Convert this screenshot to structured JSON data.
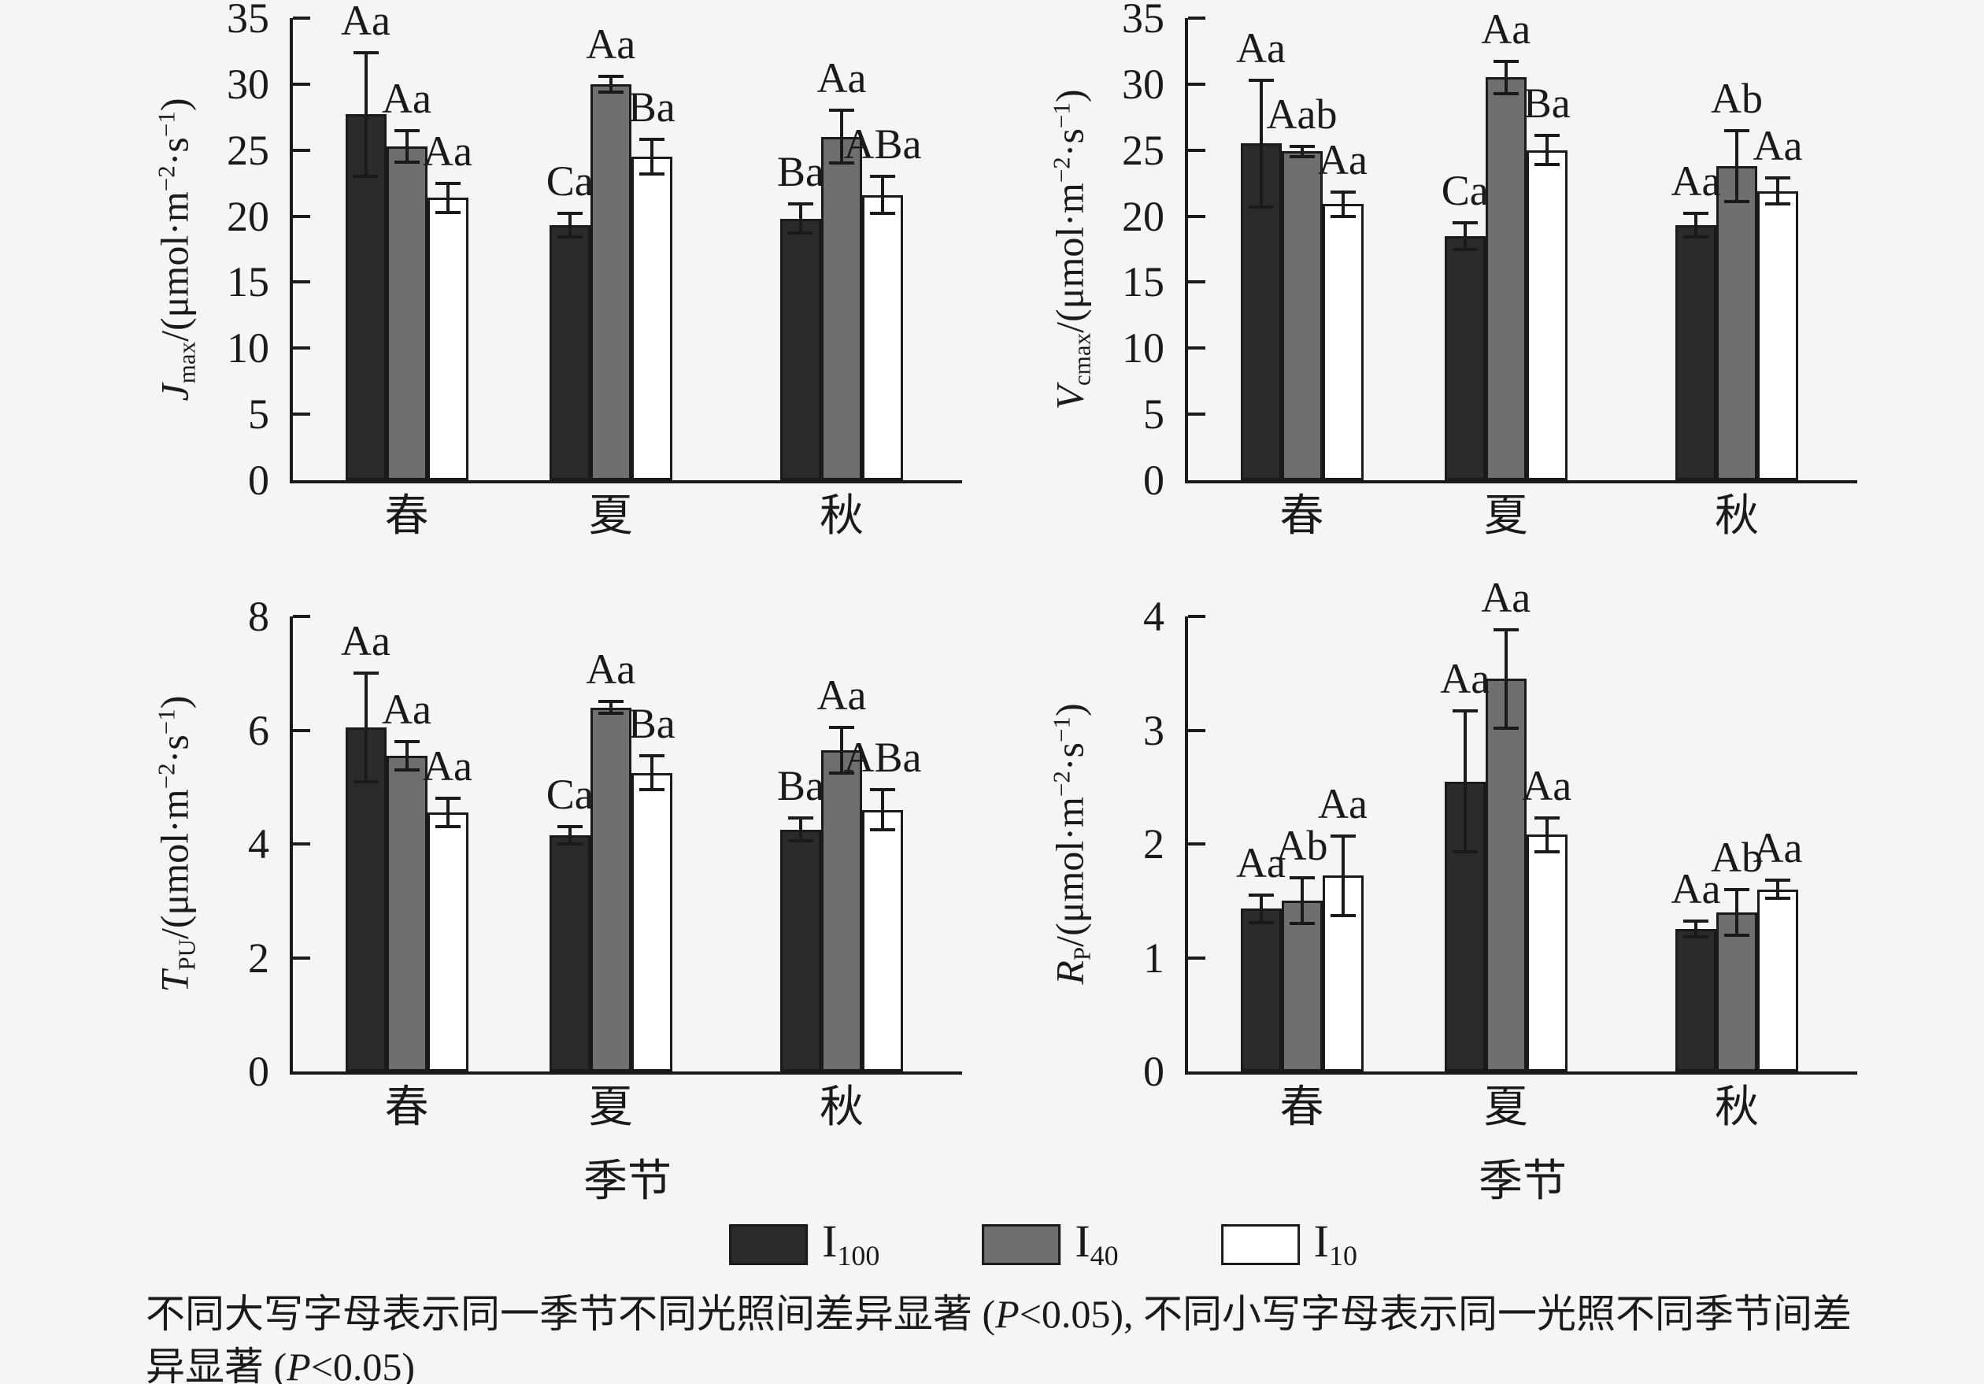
{
  "background_color": "#f5f5f4",
  "axis_color": "#1a1a1a",
  "categories": [
    "春",
    "夏",
    "秋"
  ],
  "xlabel": "季节",
  "legend": {
    "items": [
      {
        "main": "I",
        "sub": "100",
        "fill": "#2b2b2b"
      },
      {
        "main": "I",
        "sub": "40",
        "fill": "#6f6f6f"
      },
      {
        "main": "I",
        "sub": "10",
        "fill": "#ffffff"
      }
    ]
  },
  "caption_segments": [
    {
      "t": "不同大写字母表示同一季节不同光照间差异显著 (",
      "s": ""
    },
    {
      "t": "P",
      "s": "i"
    },
    {
      "t": "<0.05), 不同小写字母表示同一光照不同季节间差异显著 (",
      "s": ""
    },
    {
      "t": "P",
      "s": "i"
    },
    {
      "t": "<0.05)",
      "s": ""
    }
  ],
  "chart_data": [
    {
      "id": "jmax",
      "type": "bar",
      "ylabel_segments": [
        {
          "t": "J",
          "s": "i"
        },
        {
          "t": "max",
          "s": "sub"
        },
        {
          "t": "/(μmol·m",
          "s": ""
        },
        {
          "t": "−2",
          "s": "sup"
        },
        {
          "t": "·s",
          "s": ""
        },
        {
          "t": "−1",
          "s": "sup"
        },
        {
          "t": ")",
          "s": ""
        }
      ],
      "ylim": [
        0,
        35
      ],
      "ytick_step": 5,
      "grid": false,
      "show_xlabel": false,
      "categories": [
        "春",
        "夏",
        "秋"
      ],
      "series": [
        {
          "name": "I100",
          "values": [
            27.7,
            19.3,
            19.8
          ],
          "errors": [
            4.7,
            0.9,
            1.1
          ],
          "letters": [
            "Aa",
            "Ca",
            "Ba"
          ]
        },
        {
          "name": "I40",
          "values": [
            25.3,
            30.0,
            26.0
          ],
          "errors": [
            1.2,
            0.6,
            2.0
          ],
          "letters": [
            "Aa",
            "Aa",
            "Aa"
          ]
        },
        {
          "name": "I10",
          "values": [
            21.4,
            24.5,
            21.6
          ],
          "errors": [
            1.1,
            1.3,
            1.4
          ],
          "letters": [
            "Aa",
            "Ba",
            "ABa"
          ]
        }
      ]
    },
    {
      "id": "vcmax",
      "type": "bar",
      "ylabel_segments": [
        {
          "t": "V",
          "s": "i"
        },
        {
          "t": "cmax",
          "s": "sub"
        },
        {
          "t": "/(μmol·m",
          "s": ""
        },
        {
          "t": "−2",
          "s": "sup"
        },
        {
          "t": "·s",
          "s": ""
        },
        {
          "t": "−1",
          "s": "sup"
        },
        {
          "t": ")",
          "s": ""
        }
      ],
      "ylim": [
        0,
        35
      ],
      "ytick_step": 5,
      "grid": false,
      "show_xlabel": false,
      "categories": [
        "春",
        "夏",
        "秋"
      ],
      "series": [
        {
          "name": "I100",
          "values": [
            25.5,
            18.5,
            19.3
          ],
          "errors": [
            4.8,
            1.0,
            0.9
          ],
          "letters": [
            "Aa",
            "Ca",
            "Aa"
          ]
        },
        {
          "name": "I40",
          "values": [
            24.9,
            30.5,
            23.8
          ],
          "errors": [
            0.4,
            1.2,
            2.7
          ],
          "letters": [
            "Aab",
            "Aa",
            "Ab"
          ]
        },
        {
          "name": "I10",
          "values": [
            20.9,
            25.0,
            21.9
          ],
          "errors": [
            0.9,
            1.1,
            1.0
          ],
          "letters": [
            "Aa",
            "Ba",
            "Aa"
          ]
        }
      ]
    },
    {
      "id": "tpu",
      "type": "bar",
      "ylabel_segments": [
        {
          "t": "T",
          "s": "i"
        },
        {
          "t": "PU",
          "s": "sub"
        },
        {
          "t": "/(μmol·m",
          "s": ""
        },
        {
          "t": "−2",
          "s": "sup"
        },
        {
          "t": "·s",
          "s": ""
        },
        {
          "t": "−1",
          "s": "sup"
        },
        {
          "t": ")",
          "s": ""
        }
      ],
      "ylim": [
        0,
        8
      ],
      "ytick_step": 2,
      "grid": false,
      "show_xlabel": true,
      "categories": [
        "春",
        "夏",
        "秋"
      ],
      "series": [
        {
          "name": "I100",
          "values": [
            6.05,
            4.15,
            4.25
          ],
          "errors": [
            0.95,
            0.15,
            0.2
          ],
          "letters": [
            "Aa",
            "Ca",
            "Ba"
          ]
        },
        {
          "name": "I40",
          "values": [
            5.55,
            6.4,
            5.65
          ],
          "errors": [
            0.25,
            0.1,
            0.4
          ],
          "letters": [
            "Aa",
            "Aa",
            "Aa"
          ]
        },
        {
          "name": "I10",
          "values": [
            4.55,
            5.25,
            4.6
          ],
          "errors": [
            0.25,
            0.3,
            0.35
          ],
          "letters": [
            "Aa",
            "Ba",
            "ABa"
          ]
        }
      ]
    },
    {
      "id": "rp",
      "type": "bar",
      "ylabel_segments": [
        {
          "t": "R",
          "s": "i"
        },
        {
          "t": "P",
          "s": "sub"
        },
        {
          "t": "/(μmol·m",
          "s": ""
        },
        {
          "t": "−2",
          "s": "sup"
        },
        {
          "t": "·s",
          "s": ""
        },
        {
          "t": "−1",
          "s": "sup"
        },
        {
          "t": ")",
          "s": ""
        }
      ],
      "ylim": [
        0,
        4
      ],
      "ytick_step": 1,
      "grid": false,
      "show_xlabel": true,
      "categories": [
        "春",
        "夏",
        "秋"
      ],
      "series": [
        {
          "name": "I100",
          "values": [
            1.43,
            2.55,
            1.25
          ],
          "errors": [
            0.12,
            0.62,
            0.07
          ],
          "letters": [
            "Aa",
            "Aa",
            "Aa"
          ]
        },
        {
          "name": "I40",
          "values": [
            1.5,
            3.45,
            1.4
          ],
          "errors": [
            0.2,
            0.43,
            0.2
          ],
          "letters": [
            "Ab",
            "Aa",
            "Ab"
          ]
        },
        {
          "name": "I10",
          "values": [
            1.72,
            2.08,
            1.6
          ],
          "errors": [
            0.35,
            0.15,
            0.08
          ],
          "letters": [
            "Aa",
            "Aa",
            "Aa"
          ]
        }
      ]
    }
  ]
}
